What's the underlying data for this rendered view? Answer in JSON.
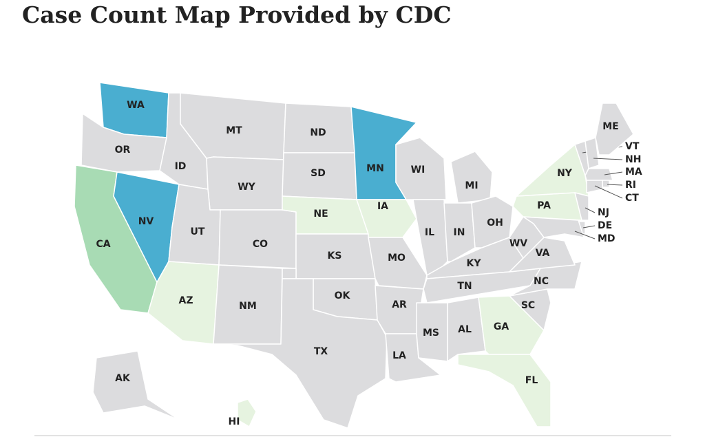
{
  "title": "Case Count Map Provided by CDC",
  "states": [
    {
      "label": "WA",
      "color": "#4aaed0"
    },
    {
      "label": "OR",
      "color": "#dcdcde"
    },
    {
      "label": "CA",
      "color": "#a8dbb4"
    },
    {
      "label": "NV",
      "color": "#4aaed0"
    },
    {
      "label": "ID",
      "color": "#dcdcde"
    },
    {
      "label": "MT",
      "color": "#dcdcde"
    },
    {
      "label": "WY",
      "color": "#dcdcde"
    },
    {
      "label": "UT",
      "color": "#dcdcde"
    },
    {
      "label": "CO",
      "color": "#dcdcde"
    },
    {
      "label": "AZ",
      "color": "#e6f3e0"
    },
    {
      "label": "NM",
      "color": "#dcdcde"
    },
    {
      "label": "ND",
      "color": "#dcdcde"
    },
    {
      "label": "SD",
      "color": "#dcdcde"
    },
    {
      "label": "NE",
      "color": "#e6f3e0"
    },
    {
      "label": "KS",
      "color": "#dcdcde"
    },
    {
      "label": "OK",
      "color": "#dcdcde"
    },
    {
      "label": "TX",
      "color": "#dcdcde"
    },
    {
      "label": "MN",
      "color": "#4aaed0"
    },
    {
      "label": "IA",
      "color": "#e6f3e0"
    },
    {
      "label": "MO",
      "color": "#dcdcde"
    },
    {
      "label": "AR",
      "color": "#dcdcde"
    },
    {
      "label": "LA",
      "color": "#dcdcde"
    },
    {
      "label": "WI",
      "color": "#dcdcde"
    },
    {
      "label": "MI",
      "color": "#dcdcde"
    },
    {
      "label": "IL",
      "color": "#dcdcde"
    },
    {
      "label": "IN",
      "color": "#dcdcde"
    },
    {
      "label": "OH",
      "color": "#dcdcde"
    },
    {
      "label": "KY",
      "color": "#dcdcde"
    },
    {
      "label": "TN",
      "color": "#dcdcde"
    },
    {
      "label": "MS",
      "color": "#dcdcde"
    },
    {
      "label": "AL",
      "color": "#dcdcde"
    },
    {
      "label": "GA",
      "color": "#e6f3e0"
    },
    {
      "label": "FL",
      "color": "#e6f3e0"
    },
    {
      "label": "SC",
      "color": "#dcdcde"
    },
    {
      "label": "NC",
      "color": "#dcdcde"
    },
    {
      "label": "VA",
      "color": "#dcdcde"
    },
    {
      "label": "WV",
      "color": "#dcdcde"
    },
    {
      "label": "PA",
      "color": "#e6f3e0"
    },
    {
      "label": "NY",
      "color": "#e6f3e0"
    },
    {
      "label": "NJ",
      "color": "#dcdcde"
    },
    {
      "label": "DE",
      "color": "#dcdcde"
    },
    {
      "label": "MD",
      "color": "#dcdcde"
    },
    {
      "label": "VT",
      "color": "#dcdcde"
    },
    {
      "label": "NH",
      "color": "#dcdcde"
    },
    {
      "label": "ME",
      "color": "#dcdcde"
    },
    {
      "label": "MA",
      "color": "#dcdcde"
    },
    {
      "label": "RI",
      "color": "#dcdcde"
    },
    {
      "label": "CT",
      "color": "#dcdcde"
    },
    {
      "label": "AK",
      "color": "#dcdcde"
    },
    {
      "label": "HI",
      "color": "#e6f3e0"
    }
  ]
}
